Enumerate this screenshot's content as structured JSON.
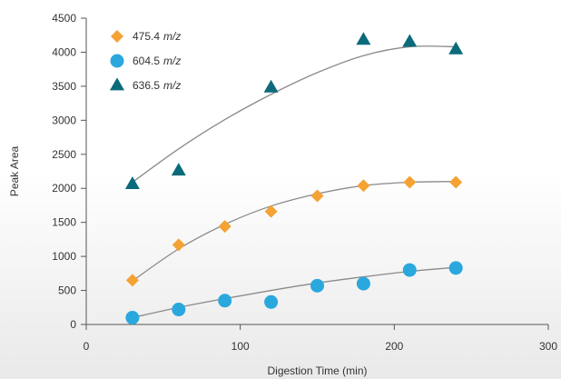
{
  "chart_data": {
    "type": "scatter",
    "title": "",
    "xlabel": "Digestion Time (min)",
    "ylabel": "Peak Area",
    "xlim": [
      0,
      300
    ],
    "ylim": [
      0,
      4500
    ],
    "xticks": [
      0,
      100,
      200,
      300
    ],
    "yticks": [
      0,
      500,
      1000,
      1500,
      2000,
      2500,
      3000,
      3500,
      4000,
      4500
    ],
    "grid": false,
    "legend_position": "top-left",
    "series": [
      {
        "name_value": "475.4",
        "name_unit": "m/z",
        "marker": "diamond",
        "color": "#f4a233",
        "x": [
          30,
          60,
          90,
          120,
          150,
          180,
          210,
          240
        ],
        "y": [
          650,
          1170,
          1440,
          1660,
          1890,
          2040,
          2090,
          2090
        ],
        "trend": [
          [
            30,
            640
          ],
          [
            60,
            1110
          ],
          [
            90,
            1470
          ],
          [
            120,
            1740
          ],
          [
            150,
            1920
          ],
          [
            180,
            2040
          ],
          [
            210,
            2090
          ],
          [
            240,
            2100
          ]
        ]
      },
      {
        "name_value": "604.5",
        "name_unit": "m/z",
        "marker": "circle",
        "color": "#2aa8de",
        "x": [
          30,
          60,
          90,
          120,
          150,
          180,
          210,
          240
        ],
        "y": [
          100,
          220,
          350,
          330,
          570,
          600,
          800,
          830
        ],
        "trend": [
          [
            30,
            100
          ],
          [
            60,
            250
          ],
          [
            90,
            380
          ],
          [
            120,
            500
          ],
          [
            150,
            610
          ],
          [
            180,
            700
          ],
          [
            210,
            780
          ],
          [
            240,
            840
          ]
        ]
      },
      {
        "name_value": "636.5",
        "name_unit": "m/z",
        "marker": "triangle",
        "color": "#0b6b7a",
        "x": [
          30,
          60,
          120,
          180,
          210,
          240
        ],
        "y": [
          2060,
          2260,
          3480,
          4180,
          4150,
          4040
        ],
        "trend": [
          [
            30,
            2090
          ],
          [
            60,
            2580
          ],
          [
            90,
            3010
          ],
          [
            120,
            3380
          ],
          [
            150,
            3700
          ],
          [
            180,
            3950
          ],
          [
            210,
            4080
          ],
          [
            240,
            4080
          ]
        ]
      }
    ],
    "trendline_color": "#8a8a8a"
  }
}
